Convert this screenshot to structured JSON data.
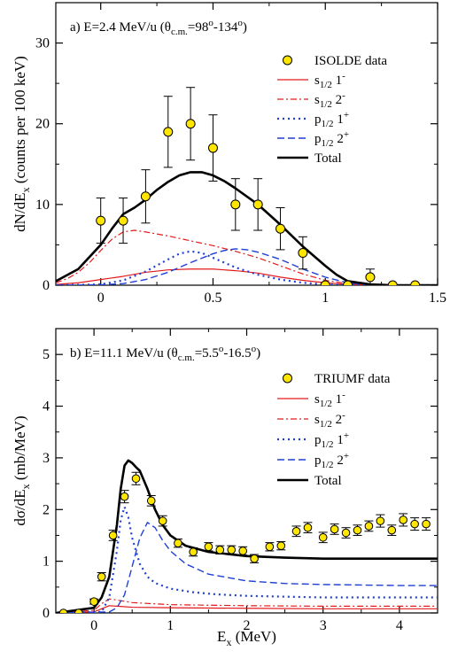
{
  "chart_data": [
    {
      "type": "scatter",
      "panel_label": "a) E=2.4 MeV/u (θ",
      "panel_sub": "c.m.",
      "panel_range_a": "=98",
      "panel_sup_a": "o",
      "panel_range_b": "-134",
      "panel_sup_b": "o",
      "panel_close": ")",
      "xlim": [
        -0.2,
        1.5
      ],
      "ylim": [
        0,
        35
      ],
      "xticks": [
        0,
        0.5,
        1,
        1.5
      ],
      "xtick_labels": [
        "0",
        "0.5",
        "1",
        "1.5"
      ],
      "yticks": [
        0,
        10,
        20,
        30
      ],
      "ytick_labels": [
        "0",
        "10",
        "20",
        "30"
      ],
      "ylabel_main": "dN/dE",
      "ylabel_sub": "x",
      "ylabel_tail": " (counts per 100 keV)",
      "grid": false,
      "legend_position": "top-right",
      "legend": [
        {
          "style": "points",
          "text": "ISOLDE data",
          "sub": "",
          "sup": "",
          "tail": ""
        },
        {
          "style": "solid-red",
          "text": "s",
          "sub": "1/2",
          "mid": " 1",
          "sup": "-"
        },
        {
          "style": "dashdot-red",
          "text": "s",
          "sub": "1/2",
          "mid": " 2",
          "sup": "-"
        },
        {
          "style": "dotted-blue",
          "text": "p",
          "sub": "1/2",
          "mid": " 1",
          "sup": "+"
        },
        {
          "style": "dashed-blue",
          "text": "p",
          "sub": "1/2",
          "mid": " 2",
          "sup": "+"
        },
        {
          "style": "solid-black",
          "text": "Total",
          "sub": "",
          "sup": "",
          "tail": ""
        }
      ],
      "data_points": {
        "name": "ISOLDE data",
        "x": [
          0.0,
          0.1,
          0.2,
          0.3,
          0.4,
          0.5,
          0.6,
          0.7,
          0.8,
          0.9,
          1.0,
          1.1,
          1.2,
          1.3,
          1.4
        ],
        "y": [
          8,
          8,
          11,
          19,
          20,
          17,
          10,
          10,
          7,
          4,
          0,
          0,
          1,
          0,
          0
        ],
        "err": [
          2.8,
          2.8,
          3.3,
          4.4,
          4.5,
          4.1,
          3.2,
          3.2,
          2.6,
          2.0,
          0,
          0,
          1.0,
          0,
          0
        ]
      },
      "curves": [
        {
          "name": "s1/2 1-",
          "style": "solid-red",
          "x": [
            -0.2,
            -0.1,
            0.0,
            0.1,
            0.2,
            0.3,
            0.4,
            0.5,
            0.6,
            0.7,
            0.8,
            0.9,
            1.0,
            1.1,
            1.2,
            1.3,
            1.4,
            1.5
          ],
          "y": [
            0.1,
            0.3,
            0.7,
            1.1,
            1.6,
            1.9,
            2.0,
            2.0,
            1.8,
            1.5,
            1.0,
            0.6,
            0.3,
            0.1,
            0.05,
            0,
            0,
            0
          ]
        },
        {
          "name": "s1/2 2-",
          "style": "dashdot-red",
          "x": [
            -0.2,
            -0.15,
            -0.1,
            -0.05,
            0.0,
            0.05,
            0.1,
            0.15,
            0.2,
            0.3,
            0.4,
            0.5,
            0.6,
            0.7,
            0.8,
            0.9,
            1.0,
            1.1,
            1.2,
            1.3,
            1.5
          ],
          "y": [
            0.3,
            0.8,
            1.6,
            2.8,
            4.3,
            5.7,
            6.6,
            6.8,
            6.6,
            6.1,
            5.5,
            4.9,
            4.2,
            3.4,
            2.4,
            1.4,
            0.6,
            0.2,
            0.05,
            0,
            0
          ]
        },
        {
          "name": "p1/2 1+",
          "style": "dotted-blue",
          "x": [
            -0.2,
            0.0,
            0.1,
            0.2,
            0.3,
            0.35,
            0.4,
            0.45,
            0.5,
            0.6,
            0.7,
            0.8,
            0.9,
            1.0,
            1.1,
            1.2,
            1.5
          ],
          "y": [
            0,
            0.1,
            0.6,
            1.7,
            3.2,
            3.9,
            4.2,
            4.0,
            3.4,
            2.2,
            1.3,
            0.7,
            0.3,
            0.1,
            0.03,
            0,
            0
          ]
        },
        {
          "name": "p1/2 2+",
          "style": "dashed-blue",
          "x": [
            -0.2,
            0.0,
            0.1,
            0.2,
            0.3,
            0.4,
            0.5,
            0.55,
            0.6,
            0.65,
            0.7,
            0.8,
            0.9,
            1.0,
            1.1,
            1.2,
            1.5
          ],
          "y": [
            0,
            0.05,
            0.2,
            0.7,
            1.6,
            2.8,
            3.9,
            4.3,
            4.5,
            4.4,
            4.1,
            3.2,
            2.0,
            1.0,
            0.3,
            0.05,
            0
          ]
        },
        {
          "name": "Total",
          "style": "solid-black",
          "x": [
            -0.2,
            -0.1,
            0.0,
            0.05,
            0.1,
            0.15,
            0.2,
            0.25,
            0.3,
            0.35,
            0.4,
            0.45,
            0.5,
            0.55,
            0.6,
            0.7,
            0.8,
            0.9,
            1.0,
            1.05,
            1.1,
            1.2,
            1.3,
            1.5
          ],
          "y": [
            0.5,
            2.0,
            5.0,
            7.0,
            8.8,
            9.6,
            10.6,
            11.8,
            12.8,
            13.6,
            14.0,
            14.0,
            13.6,
            12.9,
            12.0,
            10.0,
            7.5,
            4.8,
            2.4,
            1.3,
            0.5,
            0.1,
            0,
            0
          ]
        }
      ]
    },
    {
      "type": "scatter",
      "panel_label": "b) E=11.1 MeV/u (θ",
      "panel_sub": "c.m.",
      "panel_range_a": "=5.5",
      "panel_sup_a": "o",
      "panel_range_b": "-16.5",
      "panel_sup_b": "o",
      "panel_close": ")",
      "xlim": [
        -0.5,
        4.5
      ],
      "ylim": [
        0,
        5.5
      ],
      "xticks": [
        0,
        1,
        2,
        3,
        4
      ],
      "xtick_labels": [
        "0",
        "1",
        "2",
        "3",
        "4"
      ],
      "yticks": [
        0,
        1,
        2,
        3,
        4,
        5
      ],
      "ytick_labels": [
        "0",
        "1",
        "2",
        "3",
        "4",
        "5"
      ],
      "ylabel_main": "dσ/dE",
      "ylabel_sub": "x",
      "ylabel_tail": " (mb/MeV)",
      "xlabel_main": "E",
      "xlabel_sub": "x",
      "xlabel_tail": " (MeV)",
      "grid": false,
      "legend_position": "top-right",
      "legend": [
        {
          "style": "points",
          "text": "TRIUMF data",
          "sub": "",
          "sup": "",
          "tail": ""
        },
        {
          "style": "solid-red",
          "text": "s",
          "sub": "1/2",
          "mid": " 1",
          "sup": "-"
        },
        {
          "style": "dashdot-red",
          "text": "s",
          "sub": "1/2",
          "mid": " 2",
          "sup": "-"
        },
        {
          "style": "dotted-blue",
          "text": "p",
          "sub": "1/2",
          "mid": " 1",
          "sup": "+"
        },
        {
          "style": "dashed-blue",
          "text": "p",
          "sub": "1/2",
          "mid": " 2",
          "sup": "+"
        },
        {
          "style": "solid-black",
          "text": "Total",
          "sub": "",
          "sup": "",
          "tail": ""
        }
      ],
      "data_points": {
        "name": "TRIUMF data",
        "x": [
          -0.4,
          -0.2,
          0.0,
          0.1,
          0.25,
          0.4,
          0.55,
          0.75,
          0.9,
          1.1,
          1.3,
          1.5,
          1.65,
          1.8,
          1.95,
          2.1,
          2.3,
          2.45,
          2.65,
          2.8,
          3.0,
          3.15,
          3.3,
          3.45,
          3.6,
          3.75,
          3.9,
          4.05,
          4.2,
          4.35
        ],
        "y": [
          0.0,
          0.0,
          0.22,
          0.7,
          1.5,
          2.25,
          2.6,
          2.17,
          1.78,
          1.35,
          1.18,
          1.28,
          1.22,
          1.22,
          1.2,
          1.05,
          1.28,
          1.3,
          1.58,
          1.65,
          1.46,
          1.62,
          1.55,
          1.6,
          1.68,
          1.78,
          1.6,
          1.8,
          1.72,
          1.72
        ],
        "err": [
          0,
          0,
          0.05,
          0.08,
          0.1,
          0.12,
          0.12,
          0.1,
          0.1,
          0.08,
          0.08,
          0.08,
          0.08,
          0.08,
          0.08,
          0.08,
          0.08,
          0.08,
          0.1,
          0.1,
          0.1,
          0.1,
          0.1,
          0.1,
          0.1,
          0.12,
          0.1,
          0.12,
          0.12,
          0.12
        ]
      },
      "curves": [
        {
          "name": "s1/2 1-",
          "style": "solid-red",
          "x": [
            -0.5,
            0.0,
            0.1,
            0.2,
            0.3,
            0.5,
            1.0,
            2.0,
            3.0,
            4.5
          ],
          "y": [
            0,
            0.02,
            0.08,
            0.14,
            0.13,
            0.11,
            0.1,
            0.09,
            0.08,
            0.08
          ]
        },
        {
          "name": "s1/2 2-",
          "style": "dashdot-red",
          "x": [
            -0.5,
            0.0,
            0.1,
            0.2,
            0.3,
            0.5,
            1.0,
            2.0,
            3.0,
            4.5
          ],
          "y": [
            0,
            0.05,
            0.18,
            0.27,
            0.25,
            0.2,
            0.16,
            0.14,
            0.13,
            0.13
          ]
        },
        {
          "name": "p1/2 1+",
          "style": "dotted-blue",
          "x": [
            -0.5,
            0.1,
            0.2,
            0.3,
            0.35,
            0.4,
            0.45,
            0.5,
            0.6,
            0.7,
            0.8,
            1.0,
            1.3,
            1.6,
            2.0,
            3.0,
            4.5
          ],
          "y": [
            0,
            0.02,
            0.3,
            1.2,
            1.8,
            2.05,
            1.85,
            1.45,
            0.95,
            0.7,
            0.58,
            0.47,
            0.4,
            0.36,
            0.33,
            0.3,
            0.3
          ]
        },
        {
          "name": "p1/2 2+",
          "style": "dashed-blue",
          "x": [
            -0.5,
            0.2,
            0.3,
            0.4,
            0.5,
            0.6,
            0.7,
            0.8,
            0.9,
            1.0,
            1.2,
            1.5,
            2.0,
            2.5,
            3.0,
            3.5,
            4.0,
            4.5
          ],
          "y": [
            0,
            0.02,
            0.1,
            0.35,
            0.9,
            1.45,
            1.75,
            1.65,
            1.4,
            1.2,
            0.95,
            0.75,
            0.62,
            0.57,
            0.55,
            0.54,
            0.53,
            0.53
          ]
        },
        {
          "name": "Total",
          "style": "solid-black",
          "x": [
            -0.5,
            0.0,
            0.1,
            0.2,
            0.3,
            0.35,
            0.4,
            0.45,
            0.5,
            0.55,
            0.6,
            0.7,
            0.8,
            0.9,
            1.0,
            1.2,
            1.5,
            2.0,
            2.5,
            3.0,
            3.5,
            4.0,
            4.5
          ],
          "y": [
            0,
            0.1,
            0.3,
            0.7,
            1.7,
            2.4,
            2.85,
            2.95,
            2.9,
            2.82,
            2.75,
            2.4,
            2.0,
            1.7,
            1.5,
            1.3,
            1.18,
            1.1,
            1.07,
            1.05,
            1.05,
            1.05,
            1.05
          ]
        }
      ]
    }
  ],
  "colors": {
    "marker_fill": "#ffe600",
    "red": "#e31a1c",
    "blue": "#1f3fd6",
    "black": "#000000"
  }
}
